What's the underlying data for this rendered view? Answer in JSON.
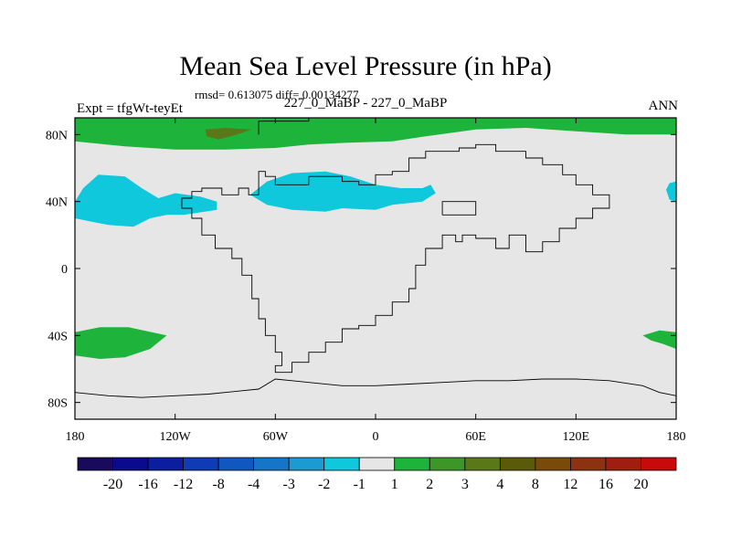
{
  "chart_data": {
    "type": "heatmap",
    "title": "Mean Sea Level Pressure (in hPa)",
    "subtitle": "rmsd= 0.613075 diff= 0.00134277",
    "left_title": "Expt = tfgWt-teyEt",
    "center_title": "227_0_MaBP - 227_0_MaBP",
    "right_title": "ANN",
    "x_range": [
      -180,
      180
    ],
    "y_range": [
      -90,
      90
    ],
    "x_ticks": [
      {
        "value": -180,
        "label": "180"
      },
      {
        "value": -120,
        "label": "120W"
      },
      {
        "value": -60,
        "label": "60W"
      },
      {
        "value": 0,
        "label": "0"
      },
      {
        "value": 60,
        "label": "60E"
      },
      {
        "value": 120,
        "label": "120E"
      },
      {
        "value": 180,
        "label": "180"
      }
    ],
    "y_ticks": [
      {
        "value": 80,
        "label": "80N"
      },
      {
        "value": 40,
        "label": "40N"
      },
      {
        "value": 0,
        "label": "0"
      },
      {
        "value": -40,
        "label": "40S"
      },
      {
        "value": -80,
        "label": "80S"
      }
    ],
    "colorbar": {
      "colors": [
        "#1a0a5c",
        "#0a0a8c",
        "#0b1ea0",
        "#0f3cb4",
        "#1057c0",
        "#1575c8",
        "#1c9ad2",
        "#10c8dc",
        "#e6e6e6",
        "#1eb43c",
        "#3c9628",
        "#5a7818",
        "#5a5a0a",
        "#7a4a0a",
        "#8c3210",
        "#a01e10",
        "#c80a0a"
      ],
      "labels": [
        "-20",
        "-16",
        "-12",
        "-8",
        "-4",
        "-3",
        "-2",
        "-1",
        "1",
        "2",
        "3",
        "4",
        "8",
        "12",
        "16",
        "20"
      ]
    },
    "background_color": "#e6e6e6",
    "regions": [
      {
        "name": "north-green-band",
        "color": "#1eb43c",
        "coords": [
          [
            -180,
            90
          ],
          [
            180,
            90
          ],
          [
            180,
            80
          ],
          [
            150,
            80
          ],
          [
            120,
            82
          ],
          [
            90,
            84
          ],
          [
            60,
            83
          ],
          [
            30,
            79
          ],
          [
            10,
            76
          ],
          [
            -20,
            75
          ],
          [
            -40,
            74
          ],
          [
            -60,
            72
          ],
          [
            -90,
            71
          ],
          [
            -120,
            71
          ],
          [
            -150,
            73
          ],
          [
            -180,
            76
          ]
        ]
      },
      {
        "name": "north-olive-patch",
        "color": "#5a7818",
        "coords": [
          [
            -102,
            83
          ],
          [
            -90,
            84
          ],
          [
            -74,
            83
          ],
          [
            -83,
            80
          ],
          [
            -94,
            77
          ],
          [
            -101,
            79
          ]
        ]
      },
      {
        "name": "pacific-cyan-patch",
        "color": "#10c8dc",
        "coords": [
          [
            -180,
            40
          ],
          [
            -175,
            48
          ],
          [
            -166,
            56
          ],
          [
            -150,
            55
          ],
          [
            -140,
            48
          ],
          [
            -130,
            42
          ],
          [
            -120,
            45
          ],
          [
            -105,
            43
          ],
          [
            -95,
            40
          ],
          [
            -95,
            35
          ],
          [
            -115,
            32
          ],
          [
            -125,
            32
          ],
          [
            -135,
            30
          ],
          [
            -145,
            25
          ],
          [
            -160,
            26
          ],
          [
            -170,
            28
          ],
          [
            -180,
            30
          ]
        ]
      },
      {
        "name": "atlantic-cyan-patch",
        "color": "#10c8dc",
        "coords": [
          [
            -75,
            44
          ],
          [
            -65,
            52
          ],
          [
            -50,
            57
          ],
          [
            -30,
            58
          ],
          [
            -15,
            55
          ],
          [
            0,
            50
          ],
          [
            15,
            48
          ],
          [
            28,
            48
          ],
          [
            33,
            50
          ],
          [
            36,
            45
          ],
          [
            28,
            40
          ],
          [
            10,
            38
          ],
          [
            0,
            35
          ],
          [
            -20,
            36
          ],
          [
            -30,
            34
          ],
          [
            -50,
            35
          ],
          [
            -65,
            38
          ]
        ]
      },
      {
        "name": "east-edge-cyan-patch",
        "color": "#10c8dc",
        "coords": [
          [
            180,
            52
          ],
          [
            176,
            51
          ],
          [
            174,
            47
          ],
          [
            176,
            41
          ],
          [
            180,
            40
          ]
        ]
      },
      {
        "name": "southwest-green-patch",
        "color": "#1eb43c",
        "coords": [
          [
            -180,
            -38
          ],
          [
            -165,
            -35
          ],
          [
            -148,
            -35
          ],
          [
            -125,
            -40
          ],
          [
            -135,
            -48
          ],
          [
            -150,
            -53
          ],
          [
            -165,
            -54
          ],
          [
            -180,
            -52
          ]
        ]
      },
      {
        "name": "southeast-green-patch",
        "color": "#1eb43c",
        "coords": [
          [
            180,
            -38
          ],
          [
            170,
            -37
          ],
          [
            160,
            -40
          ],
          [
            165,
            -43
          ],
          [
            172,
            -45
          ],
          [
            180,
            -48
          ]
        ]
      }
    ],
    "coastlines": [
      {
        "name": "americas-africa-coastline",
        "coords": [
          [
            -70,
            48
          ],
          [
            -70,
            58
          ],
          [
            -66,
            58
          ],
          [
            -66,
            55
          ],
          [
            -60,
            55
          ],
          [
            -60,
            50
          ],
          [
            -40,
            50
          ],
          [
            -40,
            55
          ],
          [
            -20,
            55
          ],
          [
            -20,
            52
          ],
          [
            -10,
            52
          ],
          [
            -10,
            50
          ],
          [
            0,
            50
          ],
          [
            0,
            56
          ],
          [
            10,
            56
          ],
          [
            10,
            58
          ],
          [
            20,
            58
          ],
          [
            20,
            66
          ],
          [
            30,
            66
          ],
          [
            30,
            70
          ],
          [
            50,
            70
          ],
          [
            50,
            72
          ],
          [
            60,
            72
          ],
          [
            60,
            74
          ],
          [
            72,
            74
          ],
          [
            72,
            70
          ],
          [
            90,
            70
          ],
          [
            90,
            66
          ],
          [
            100,
            66
          ],
          [
            100,
            62
          ],
          [
            112,
            62
          ],
          [
            112,
            56
          ],
          [
            120,
            56
          ],
          [
            120,
            50
          ],
          [
            130,
            50
          ],
          [
            130,
            44
          ],
          [
            140,
            44
          ],
          [
            140,
            36
          ],
          [
            130,
            36
          ],
          [
            130,
            30
          ],
          [
            120,
            30
          ],
          [
            120,
            24
          ],
          [
            110,
            24
          ],
          [
            110,
            16
          ],
          [
            100,
            16
          ],
          [
            100,
            10
          ],
          [
            90,
            10
          ],
          [
            90,
            20
          ],
          [
            80,
            20
          ],
          [
            80,
            12
          ],
          [
            72,
            12
          ],
          [
            72,
            18
          ],
          [
            60,
            18
          ],
          [
            60,
            20
          ],
          [
            52,
            20
          ],
          [
            52,
            16
          ],
          [
            48,
            16
          ],
          [
            48,
            20
          ],
          [
            40,
            20
          ],
          [
            40,
            12
          ],
          [
            30,
            12
          ],
          [
            30,
            2
          ],
          [
            24,
            2
          ],
          [
            24,
            -12
          ],
          [
            20,
            -12
          ],
          [
            20,
            -20
          ],
          [
            10,
            -20
          ],
          [
            10,
            -28
          ],
          [
            0,
            -28
          ],
          [
            0,
            -34
          ],
          [
            -10,
            -34
          ],
          [
            -10,
            -36
          ],
          [
            -20,
            -36
          ],
          [
            -20,
            -44
          ],
          [
            -30,
            -44
          ],
          [
            -30,
            -50
          ],
          [
            -40,
            -50
          ],
          [
            -40,
            -56
          ],
          [
            -50,
            -56
          ],
          [
            -50,
            -62
          ],
          [
            -60,
            -62
          ],
          [
            -60,
            -58
          ],
          [
            -56,
            -58
          ],
          [
            -56,
            -50
          ],
          [
            -60,
            -50
          ],
          [
            -60,
            -40
          ],
          [
            -66,
            -40
          ],
          [
            -66,
            -30
          ],
          [
            -70,
            -30
          ],
          [
            -70,
            -18
          ],
          [
            -74,
            -18
          ],
          [
            -74,
            -4
          ],
          [
            -80,
            -4
          ],
          [
            -80,
            6
          ],
          [
            -86,
            6
          ],
          [
            -86,
            12
          ],
          [
            -96,
            12
          ],
          [
            -96,
            20
          ],
          [
            -104,
            20
          ],
          [
            -104,
            30
          ],
          [
            -110,
            30
          ],
          [
            -110,
            36
          ],
          [
            -116,
            36
          ],
          [
            -116,
            42
          ],
          [
            -110,
            42
          ],
          [
            -110,
            46
          ],
          [
            -104,
            46
          ],
          [
            -104,
            48
          ],
          [
            -92,
            48
          ],
          [
            -92,
            44
          ],
          [
            -82,
            44
          ],
          [
            -82,
            48
          ],
          [
            -76,
            48
          ],
          [
            -76,
            44
          ],
          [
            -70,
            44
          ],
          [
            -70,
            48
          ]
        ]
      },
      {
        "name": "antarctica-coastline",
        "coords": [
          [
            -180,
            -74
          ],
          [
            -160,
            -76
          ],
          [
            -140,
            -77
          ],
          [
            -120,
            -76
          ],
          [
            -100,
            -75
          ],
          [
            -80,
            -73
          ],
          [
            -70,
            -72
          ],
          [
            -60,
            -66
          ],
          [
            -50,
            -67
          ],
          [
            -40,
            -68
          ],
          [
            -20,
            -70
          ],
          [
            0,
            -70
          ],
          [
            20,
            -69
          ],
          [
            40,
            -68
          ],
          [
            60,
            -67
          ],
          [
            80,
            -67
          ],
          [
            100,
            -66
          ],
          [
            120,
            -66
          ],
          [
            140,
            -67
          ],
          [
            160,
            -70
          ],
          [
            170,
            -74
          ],
          [
            180,
            -76
          ]
        ]
      },
      {
        "name": "arctic-coastline",
        "coords": [
          [
            -70,
            80
          ],
          [
            -70,
            88
          ],
          [
            -40,
            88
          ],
          [
            -40,
            90
          ]
        ]
      },
      {
        "name": "caspian-coastline",
        "coords": [
          [
            40,
            32
          ],
          [
            40,
            40
          ],
          [
            60,
            40
          ],
          [
            60,
            32
          ],
          [
            40,
            32
          ]
        ]
      }
    ]
  }
}
